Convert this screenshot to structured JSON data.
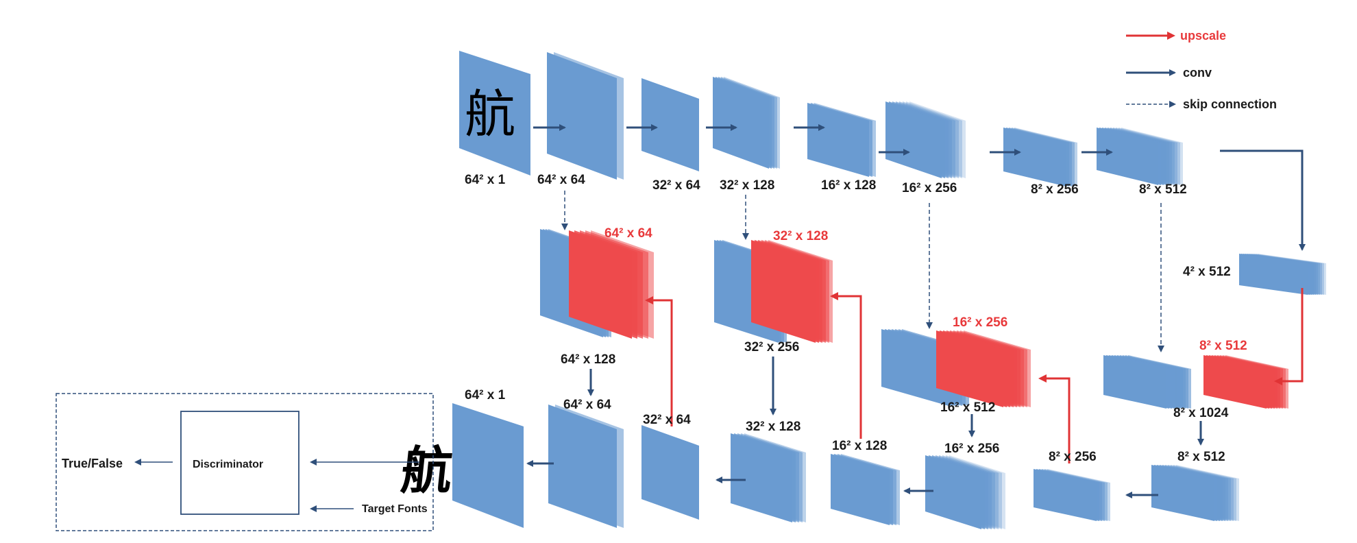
{
  "colors": {
    "blue": "#6a9bd1",
    "red": "#ee4a4c",
    "arrow": "#2f4f7a",
    "upscale": "#e03335"
  },
  "legend": {
    "upscale": "upscale",
    "conv": "conv",
    "skip": "skip connection"
  },
  "input_glyph": "航",
  "output_glyph": "航",
  "encoder": {
    "labels": [
      "64² x 1",
      "64² x 64",
      "32² x 64",
      "32² x 128",
      "16² x 128",
      "16² x 256",
      "8² x 256",
      "8² x 512"
    ]
  },
  "bottleneck": {
    "label": "4² x 512"
  },
  "upscaled": {
    "labels": [
      "64² x 64",
      "32² x 128",
      "16² x 256",
      "8² x 512"
    ]
  },
  "concat": {
    "labels": [
      "64² x 128",
      "32² x 256",
      "16² x 512",
      "8² x 1024"
    ]
  },
  "decoder": {
    "labels": [
      "64² x 1",
      "64² x 64",
      "32² x 64",
      "32² x 128",
      "16² x 128",
      "16² x 256",
      "8² x 256",
      "8² x 512"
    ]
  },
  "discriminator": {
    "title": "Discriminator",
    "output": "True/False",
    "target": "Target Fonts"
  }
}
